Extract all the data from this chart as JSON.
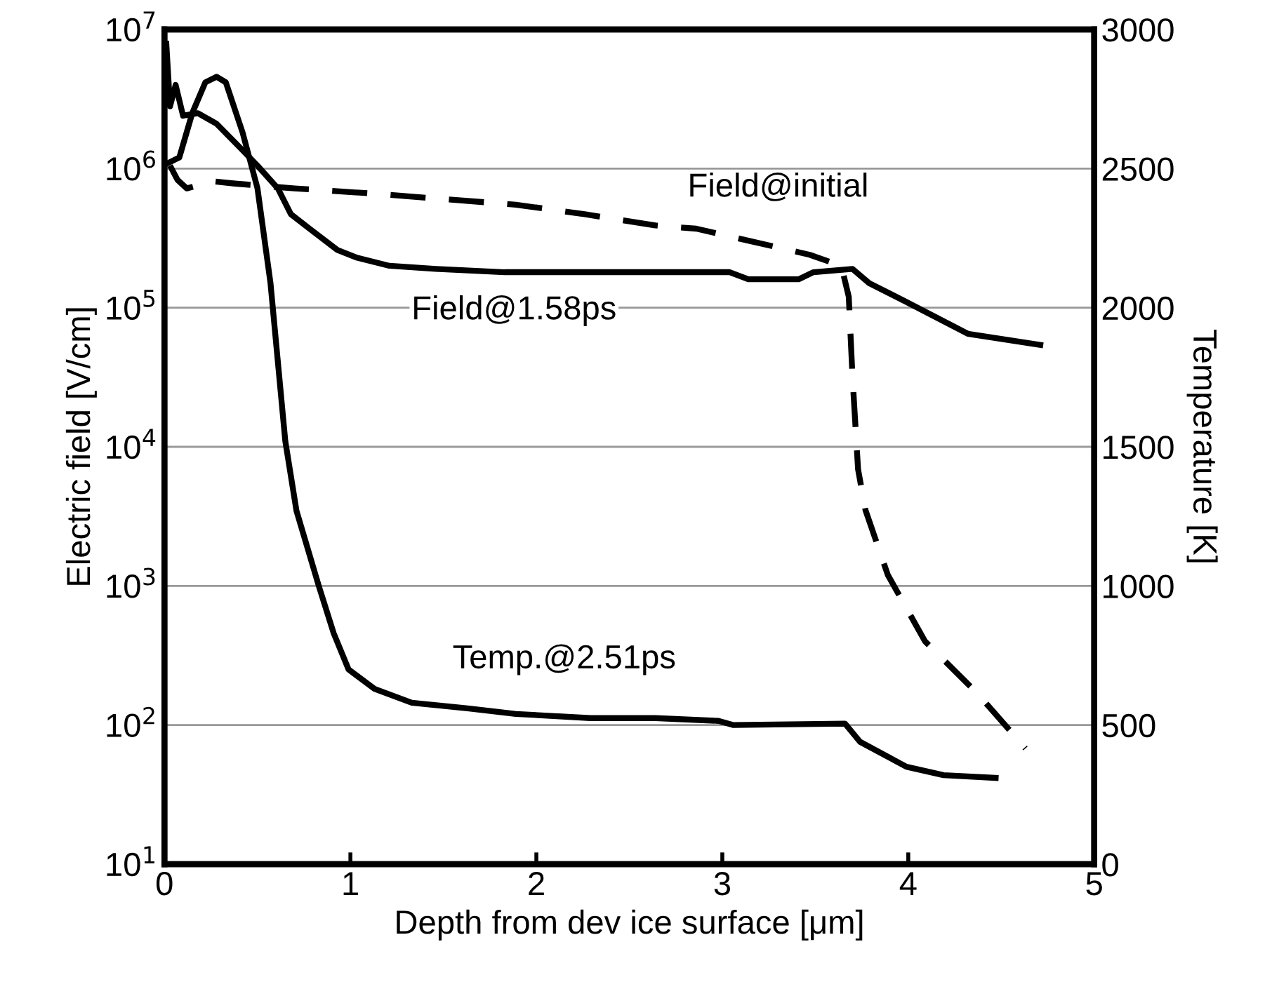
{
  "chart_data": {
    "type": "line",
    "xlabel": "Depth from dev ice surface [μm]",
    "ylabel": "Electric field [V/cm]",
    "y2label": "Temperature [K]",
    "xlim": [
      0,
      5
    ],
    "xticks": [
      0,
      1,
      2,
      3,
      4,
      5
    ],
    "ylim": [
      10,
      10000000
    ],
    "yticks": [
      {
        "value": 10,
        "label": "10$^{1}$"
      },
      {
        "value": 100,
        "label": "10$^{2}$"
      },
      {
        "value": 1000,
        "label": "10$^{3}$"
      },
      {
        "value": 10000,
        "label": "10$^{4}$"
      },
      {
        "value": 100000,
        "label": "10$^{5}$"
      },
      {
        "value": 1000000,
        "label": "10$^{6}$"
      },
      {
        "value": 10000000,
        "label": "10$^{7}$"
      }
    ],
    "y2lim": [
      0,
      3000
    ],
    "y2ticks": [
      0,
      500,
      1000,
      1500,
      2000,
      2500,
      3000
    ],
    "log": "y",
    "grid": "y",
    "marker": "none",
    "series": [
      {
        "name": "Field@initial",
        "color": "#000000",
        "line_style": "dashed",
        "x": [
          0.03,
          0.07,
          0.12,
          0.26,
          0.38,
          0.7,
          1.13,
          1.89,
          2.26,
          2.64,
          2.86,
          3.47,
          3.64,
          3.68,
          3.7,
          3.73,
          3.77,
          3.89,
          4.09,
          4.37,
          4.63
        ],
        "values": [
          1050000,
          830000,
          720000,
          810000,
          780000,
          720000,
          660000,
          550000,
          470000,
          390000,
          370000,
          240000,
          200000,
          120000,
          32000,
          6900,
          3500,
          1200,
          400,
          170,
          68
        ]
      },
      {
        "name": "Field@1.58ps",
        "color": "#000000",
        "line_style": "solid",
        "x": [
          0.01,
          0.03,
          0.06,
          0.1,
          0.18,
          0.28,
          0.41,
          0.5,
          0.61,
          0.68,
          0.78,
          0.93,
          1.03,
          1.21,
          1.46,
          1.83,
          2.89,
          3.04,
          3.14,
          3.41,
          3.49,
          3.7,
          3.79,
          3.99,
          4.32,
          4.71
        ],
        "values": [
          7900000,
          2800000,
          4000000,
          2400000,
          2500000,
          2100000,
          1400000,
          1050000,
          720000,
          470000,
          370000,
          260000,
          230000,
          200000,
          190000,
          180000,
          180000,
          180000,
          160000,
          160000,
          180000,
          190000,
          150000,
          110000,
          65000,
          54000
        ]
      },
      {
        "name": "Temp.@2.51ps",
        "color": "#000000",
        "line_style": "solid",
        "axis": "y2",
        "x": [
          0.02,
          0.08,
          0.15,
          0.22,
          0.28,
          0.33,
          0.42,
          0.5,
          0.57,
          0.65,
          0.71,
          0.83,
          0.91,
          0.99,
          1.13,
          1.33,
          1.63,
          1.89,
          2.29,
          2.64,
          2.98,
          3.06,
          3.66,
          3.74,
          3.99,
          4.19,
          4.47
        ],
        "values": [
          2520,
          2540,
          2700,
          2810,
          2830,
          2810,
          2630,
          2430,
          2090,
          1520,
          1270,
          1000,
          830,
          700,
          630,
          580,
          560,
          540,
          525,
          525,
          515,
          500,
          505,
          440,
          350,
          320,
          310
        ]
      }
    ]
  }
}
